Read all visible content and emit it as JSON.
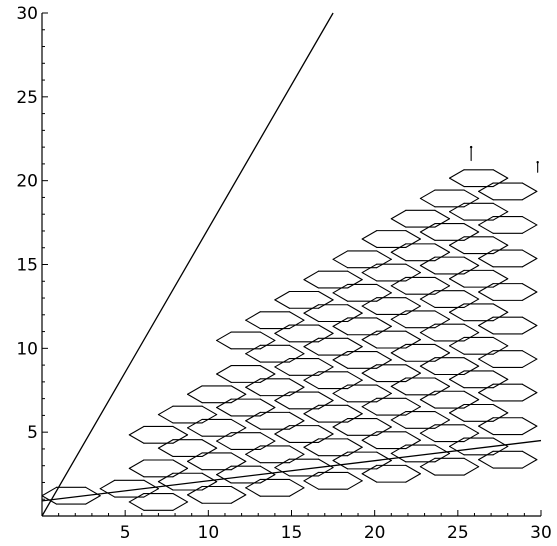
{
  "chart_data": {
    "type": "line",
    "title": "",
    "xlabel": "",
    "ylabel": "",
    "xlim": [
      0,
      30
    ],
    "ylim": [
      0,
      30
    ],
    "grid": false,
    "legend": "none",
    "x_ticks": [
      5,
      10,
      15,
      20,
      25,
      30
    ],
    "y_ticks": [
      5,
      10,
      15,
      20,
      25,
      30
    ],
    "series": [
      {
        "kind": "line",
        "x": [
          0,
          17.5
        ],
        "y": [
          0,
          30
        ]
      },
      {
        "kind": "line",
        "x": [
          0,
          30
        ],
        "y": [
          0.9,
          4.5
        ]
      }
    ],
    "lattice": {
      "description_free": true,
      "hexagon_half_width": 1.75,
      "hexagon_half_height": 0.5,
      "column_step_x": 3.5,
      "row_step_y": 1.0,
      "odd_row_shift_x": 1.75,
      "tilt_slope": 0.12,
      "x_range": [
        0,
        30
      ],
      "top_boundary": [
        [
          2.5,
          2.0
        ],
        [
          5,
          5.0
        ],
        [
          8,
          8.2
        ],
        [
          11,
          11.3
        ],
        [
          14,
          13.8
        ],
        [
          17,
          16.0
        ],
        [
          20,
          18.2
        ],
        [
          23,
          20.0
        ],
        [
          26,
          21.3
        ],
        [
          30,
          21.8
        ]
      ],
      "bottom_y": 0,
      "vertical_stubs": [
        [
          25.8,
          21.2,
          22.0
        ],
        [
          29.8,
          20.5,
          21.1
        ]
      ]
    }
  }
}
